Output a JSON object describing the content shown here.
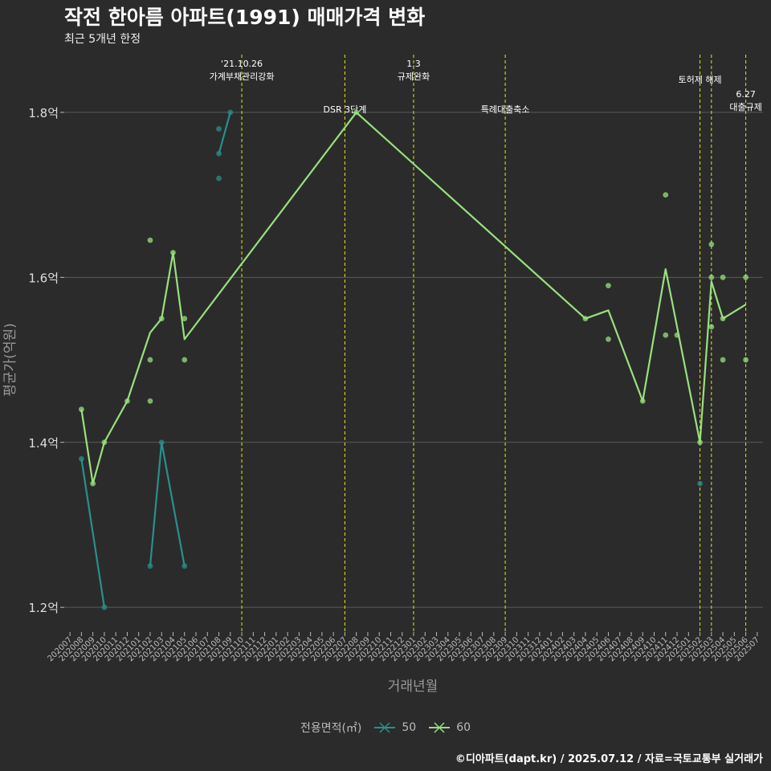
{
  "title": "작전 한아름 아파트(1991) 매매가격 변화",
  "subtitle": "최근 5개년 한정",
  "caption": "©디아파트(dapt.kr) / 2025.07.12 / 자료=국토교통부 실거래가",
  "colors": {
    "background": "#2b2b2b",
    "grid": "#5a5a5a",
    "vline": "#e6e61a",
    "s50": "#2a8f8c",
    "s60": "#99e07e"
  },
  "chart_data": {
    "type": "line",
    "title": "작전 한아름 아파트(1991) 매매가격 변화",
    "subtitle": "최근 5개년 한정",
    "xlabel": "거래년월",
    "ylabel": "평균가(억원)",
    "ylim": [
      1.17,
      1.87
    ],
    "y_ticks": [
      1.2,
      1.4,
      1.6,
      1.8
    ],
    "y_tick_labels": [
      "1.2억",
      "1.4억",
      "1.6억",
      "1.8억"
    ],
    "x_ticks": [
      "202007",
      "202008",
      "202009",
      "202010",
      "202011",
      "202012",
      "202101",
      "202102",
      "202103",
      "202104",
      "202105",
      "202106",
      "202107",
      "202108",
      "202109",
      "202110",
      "202111",
      "202112",
      "202201",
      "202202",
      "202203",
      "202204",
      "202205",
      "202206",
      "202207",
      "202208",
      "202209",
      "202210",
      "202211",
      "202212",
      "202301",
      "202302",
      "202303",
      "202304",
      "202305",
      "202306",
      "202307",
      "202308",
      "202309",
      "202310",
      "202311",
      "202312",
      "202401",
      "202402",
      "202403",
      "202404",
      "202405",
      "202406",
      "202407",
      "202408",
      "202409",
      "202410",
      "202411",
      "202412",
      "202501",
      "202502",
      "202503",
      "202504",
      "202505",
      "202506",
      "202507"
    ],
    "legend_title": "전용면적(㎡)",
    "series": [
      {
        "name": "50",
        "color": "#2a8f8c",
        "line": [
          {
            "x": "202008",
            "y": 1.38
          },
          {
            "x": "202010",
            "y": 1.2
          },
          null,
          {
            "x": "202102",
            "y": 1.25
          },
          {
            "x": "202103",
            "y": 1.4
          },
          {
            "x": "202105",
            "y": 1.25
          },
          null,
          {
            "x": "202108",
            "y": 1.75
          },
          {
            "x": "202109",
            "y": 1.8
          }
        ],
        "points": [
          {
            "x": "202008",
            "y": 1.38
          },
          {
            "x": "202010",
            "y": 1.2
          },
          {
            "x": "202102",
            "y": 1.25
          },
          {
            "x": "202103",
            "y": 1.4
          },
          {
            "x": "202105",
            "y": 1.25
          },
          {
            "x": "202108",
            "y": 1.72
          },
          {
            "x": "202108",
            "y": 1.75
          },
          {
            "x": "202108",
            "y": 1.78
          },
          {
            "x": "202109",
            "y": 1.8
          },
          {
            "x": "202502",
            "y": 1.35
          }
        ]
      },
      {
        "name": "60",
        "color": "#99e07e",
        "line": [
          {
            "x": "202008",
            "y": 1.44
          },
          {
            "x": "202009",
            "y": 1.35
          },
          {
            "x": "202010",
            "y": 1.4
          },
          {
            "x": "202012",
            "y": 1.45
          },
          {
            "x": "202102",
            "y": 1.533
          },
          {
            "x": "202103",
            "y": 1.55
          },
          {
            "x": "202104",
            "y": 1.63
          },
          {
            "x": "202105",
            "y": 1.525
          },
          {
            "x": "202208",
            "y": 1.8
          },
          {
            "x": "202404",
            "y": 1.55
          },
          {
            "x": "202406",
            "y": 1.56
          },
          {
            "x": "202409",
            "y": 1.45
          },
          {
            "x": "202411",
            "y": 1.61
          },
          {
            "x": "202502",
            "y": 1.4
          },
          {
            "x": "202503",
            "y": 1.595
          },
          {
            "x": "202504",
            "y": 1.55
          },
          {
            "x": "202506",
            "y": 1.567
          }
        ],
        "points": [
          {
            "x": "202008",
            "y": 1.44
          },
          {
            "x": "202009",
            "y": 1.35
          },
          {
            "x": "202010",
            "y": 1.4
          },
          {
            "x": "202012",
            "y": 1.45
          },
          {
            "x": "202102",
            "y": 1.645
          },
          {
            "x": "202102",
            "y": 1.5
          },
          {
            "x": "202102",
            "y": 1.45
          },
          {
            "x": "202103",
            "y": 1.55
          },
          {
            "x": "202104",
            "y": 1.63
          },
          {
            "x": "202105",
            "y": 1.55
          },
          {
            "x": "202105",
            "y": 1.5
          },
          {
            "x": "202208",
            "y": 1.8
          },
          {
            "x": "202404",
            "y": 1.55
          },
          {
            "x": "202406",
            "y": 1.59
          },
          {
            "x": "202406",
            "y": 1.525
          },
          {
            "x": "202409",
            "y": 1.45
          },
          {
            "x": "202411",
            "y": 1.7
          },
          {
            "x": "202411",
            "y": 1.53
          },
          {
            "x": "202412",
            "y": 1.53
          },
          {
            "x": "202502",
            "y": 1.4
          },
          {
            "x": "202503",
            "y": 1.64
          },
          {
            "x": "202503",
            "y": 1.6
          },
          {
            "x": "202503",
            "y": 1.54
          },
          {
            "x": "202504",
            "y": 1.6
          },
          {
            "x": "202504",
            "y": 1.55
          },
          {
            "x": "202504",
            "y": 1.5
          },
          {
            "x": "202506",
            "y": 1.6
          },
          {
            "x": "202506",
            "y": 1.5
          }
        ]
      }
    ],
    "annotations": [
      {
        "x": "202110",
        "lines": [
          "'21.10.26",
          "가계부채관리강화"
        ],
        "level": "top"
      },
      {
        "x": "202207",
        "lines": [
          "DSR 3단계"
        ],
        "level": "mid"
      },
      {
        "x": "202301",
        "lines": [
          "1.3",
          "규제완화"
        ],
        "level": "top"
      },
      {
        "x": "202309",
        "lines": [
          "특례대출축소"
        ],
        "level": "mid"
      },
      {
        "x": "202502",
        "lines": [
          "토허제 해제"
        ],
        "level": "upper"
      },
      {
        "x": "202503",
        "lines": [],
        "level": "none"
      },
      {
        "x": "202506",
        "lines": [
          "6.27",
          "대출규제"
        ],
        "level": "low"
      }
    ]
  }
}
